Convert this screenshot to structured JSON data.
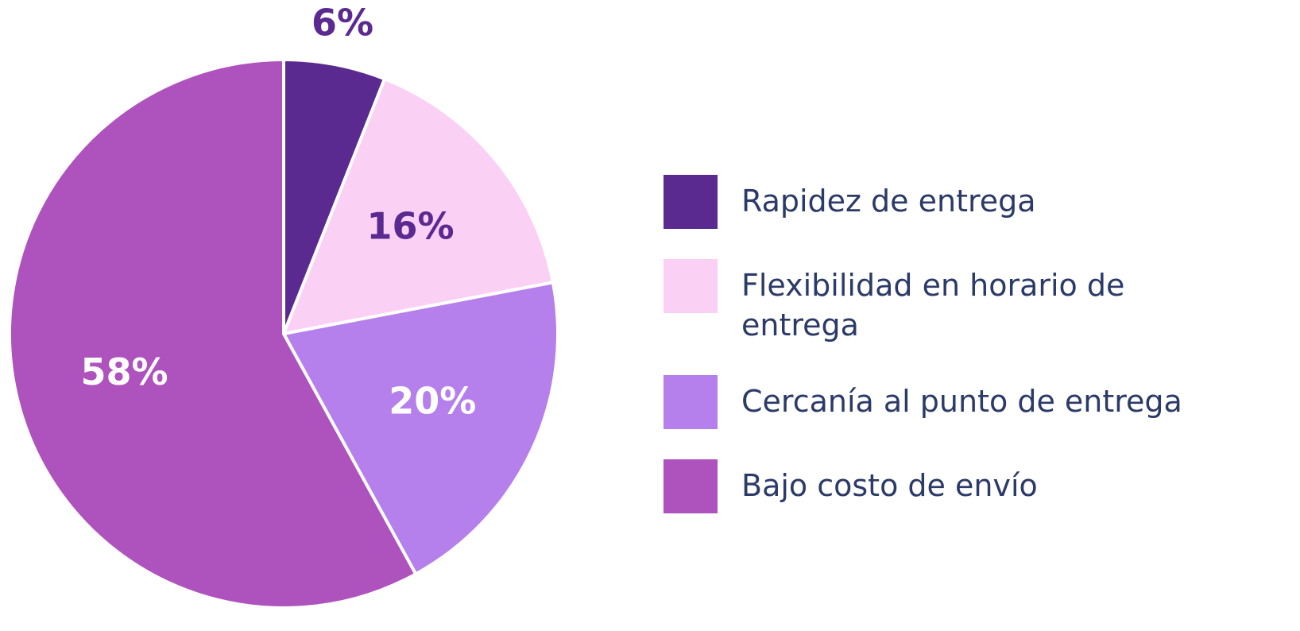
{
  "chart_data": {
    "type": "pie",
    "categories": [
      "Rapidez de entrega",
      "Flexibilidad en horario de entrega",
      "Cercanía al punto de entrega",
      "Bajo costo de envío"
    ],
    "values": [
      6,
      16,
      20,
      58
    ],
    "value_labels": [
      "6%",
      "16%",
      "20%",
      "58%"
    ],
    "colors": [
      "#5b2a91",
      "#fbd0f5",
      "#b57fec",
      "#ae52bd"
    ],
    "legend": "right"
  }
}
